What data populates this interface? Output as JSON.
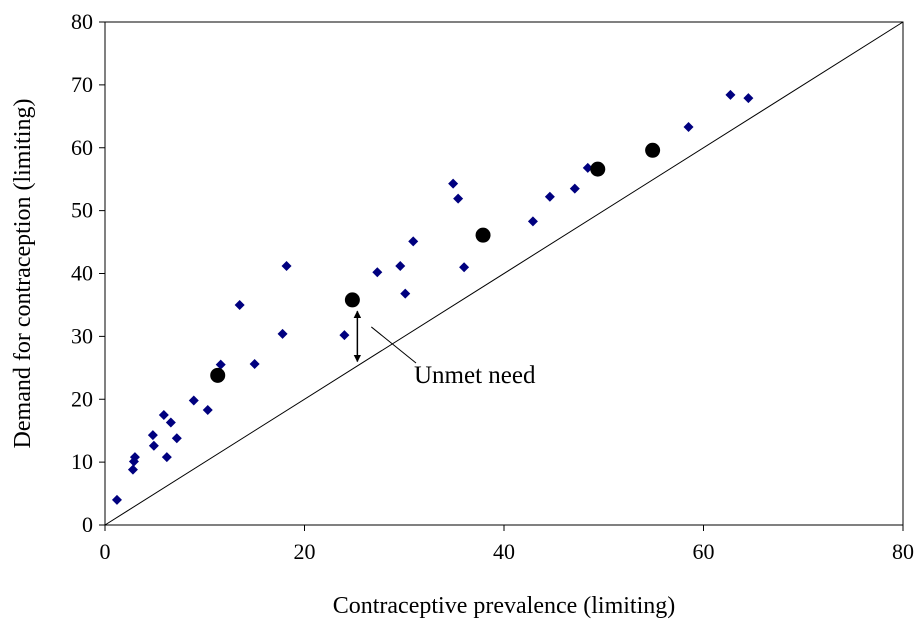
{
  "chart_data": {
    "type": "scatter",
    "xlabel": "Contraceptive prevalence (limiting)",
    "ylabel": "Demand for contraception (limiting)",
    "xlim": [
      0,
      80
    ],
    "ylim": [
      0,
      80
    ],
    "x_ticks": [
      "0",
      "20",
      "40",
      "60",
      "80"
    ],
    "y_ticks": [
      "0",
      "10",
      "20",
      "30",
      "40",
      "50",
      "60",
      "70",
      "80"
    ],
    "grid": false,
    "legend": "none",
    "series": [
      {
        "marker": "diamond",
        "color": "#00007f",
        "points": [
          [
            1.2,
            4.0
          ],
          [
            2.8,
            8.8
          ],
          [
            2.9,
            10.1
          ],
          [
            3.0,
            10.8
          ],
          [
            4.8,
            14.3
          ],
          [
            4.9,
            12.6
          ],
          [
            5.9,
            17.5
          ],
          [
            6.2,
            10.8
          ],
          [
            6.6,
            16.3
          ],
          [
            7.2,
            13.8
          ],
          [
            8.9,
            19.8
          ],
          [
            10.3,
            18.3
          ],
          [
            11.4,
            23.6
          ],
          [
            11.6,
            25.5
          ],
          [
            13.5,
            35.0
          ],
          [
            15.0,
            25.6
          ],
          [
            17.8,
            30.4
          ],
          [
            18.2,
            41.2
          ],
          [
            24.0,
            30.2
          ],
          [
            27.3,
            40.2
          ],
          [
            29.6,
            41.2
          ],
          [
            30.1,
            36.8
          ],
          [
            30.9,
            45.1
          ],
          [
            34.9,
            54.3
          ],
          [
            35.4,
            51.9
          ],
          [
            36.0,
            41.0
          ],
          [
            42.9,
            48.3
          ],
          [
            44.6,
            52.2
          ],
          [
            47.1,
            53.5
          ],
          [
            48.4,
            56.8
          ],
          [
            58.5,
            63.3
          ],
          [
            62.7,
            68.4
          ],
          [
            64.5,
            67.9
          ]
        ]
      },
      {
        "marker": "circle",
        "color": "#000000",
        "points": [
          [
            11.3,
            23.8
          ],
          [
            24.8,
            35.8
          ],
          [
            37.9,
            46.1
          ],
          [
            49.4,
            56.6
          ],
          [
            54.9,
            59.6
          ]
        ]
      }
    ],
    "reference_line": {
      "from": [
        0,
        0
      ],
      "to": [
        80,
        80
      ]
    },
    "annotation": {
      "text": "Unmet need",
      "arrow_x": 25.3,
      "arrow_y_from": 26.0,
      "arrow_y_to": 34.0,
      "pointer_to": [
        26.7,
        31.5
      ]
    }
  }
}
